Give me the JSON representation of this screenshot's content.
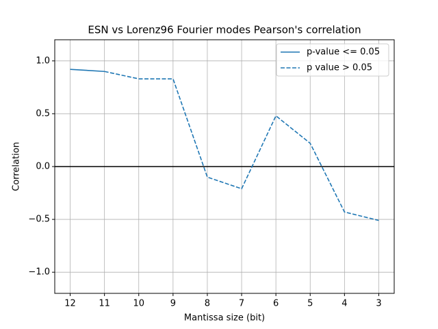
{
  "chart_data": {
    "type": "line",
    "title": "ESN vs Lorenz96 Fourier modes Pearson's correlation",
    "x_label": "Mantissa size (bit)",
    "y_label": "Correlation",
    "x": [
      12,
      11,
      10,
      9,
      8,
      7,
      6,
      5,
      4,
      3
    ],
    "series": [
      {
        "name": "p-value <= 0.05",
        "color": "#1f77b4",
        "linestyle": "solid",
        "values": [
          0.92,
          0.9,
          null,
          null,
          null,
          null,
          null,
          null,
          null,
          null
        ]
      },
      {
        "name": "p value > 0.05",
        "color": "#1f77b4",
        "linestyle": "dashed",
        "values": [
          null,
          0.9,
          0.83,
          0.83,
          -0.1,
          -0.21,
          0.48,
          0.22,
          -0.43,
          -0.51
        ]
      }
    ],
    "hline": 0,
    "xlim": [
      12.45,
      2.55
    ],
    "xticks": [
      12,
      11,
      10,
      9,
      8,
      7,
      6,
      5,
      4,
      3
    ],
    "ylim": [
      -1.2,
      1.2
    ],
    "yticks": [
      {
        "value": -1.0,
        "label": "−1.0"
      },
      {
        "value": -0.5,
        "label": "−0.5"
      },
      {
        "value": 0.0,
        "label": "0.0"
      },
      {
        "value": 0.5,
        "label": "0.5"
      },
      {
        "value": 1.0,
        "label": "1.0"
      }
    ],
    "grid": true,
    "legend": "upper right"
  }
}
